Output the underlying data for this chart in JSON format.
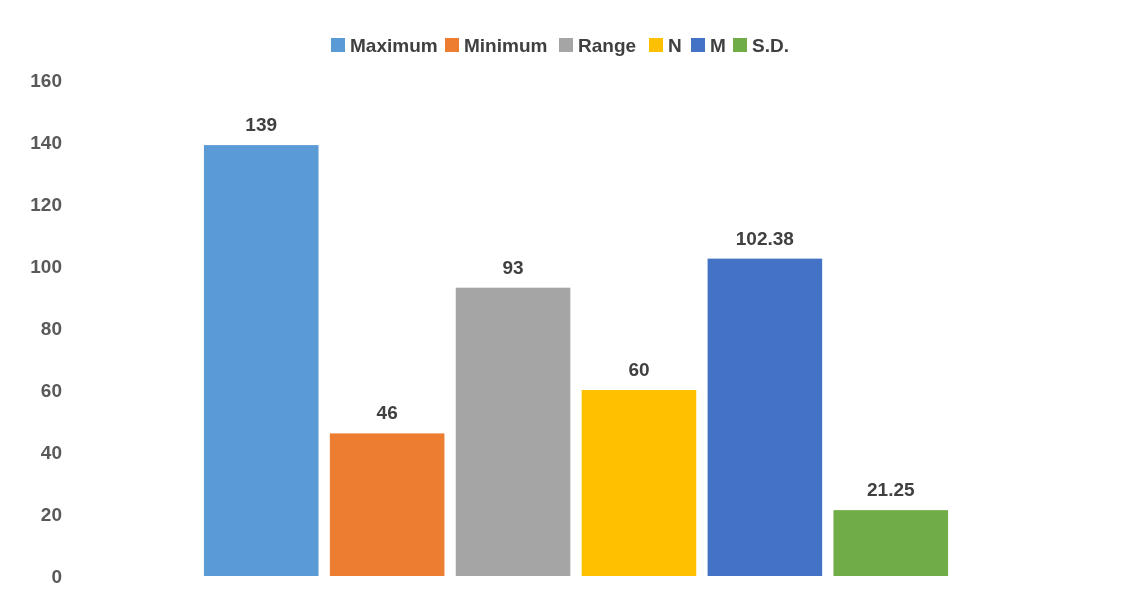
{
  "chart_data": {
    "type": "bar",
    "categories": [
      null
    ],
    "series": [
      {
        "name": "Maximum",
        "color": "#5b9bd5",
        "values": [
          139
        ]
      },
      {
        "name": "Minimum",
        "color": "#ed7d31",
        "values": [
          46
        ]
      },
      {
        "name": "Range",
        "color": "#a5a5a5",
        "values": [
          93
        ]
      },
      {
        "name": "N",
        "color": "#ffc000",
        "values": [
          60
        ]
      },
      {
        "name": "M",
        "color": "#4472c4",
        "values": [
          102.38
        ]
      },
      {
        "name": "S.D.",
        "color": "#70ad47",
        "values": [
          21.25
        ]
      }
    ],
    "ylim": [
      0,
      160
    ],
    "yticks": [
      0,
      20,
      40,
      60,
      80,
      100,
      120,
      140,
      160
    ],
    "data_labels": true,
    "legend": "top",
    "grid": false
  }
}
